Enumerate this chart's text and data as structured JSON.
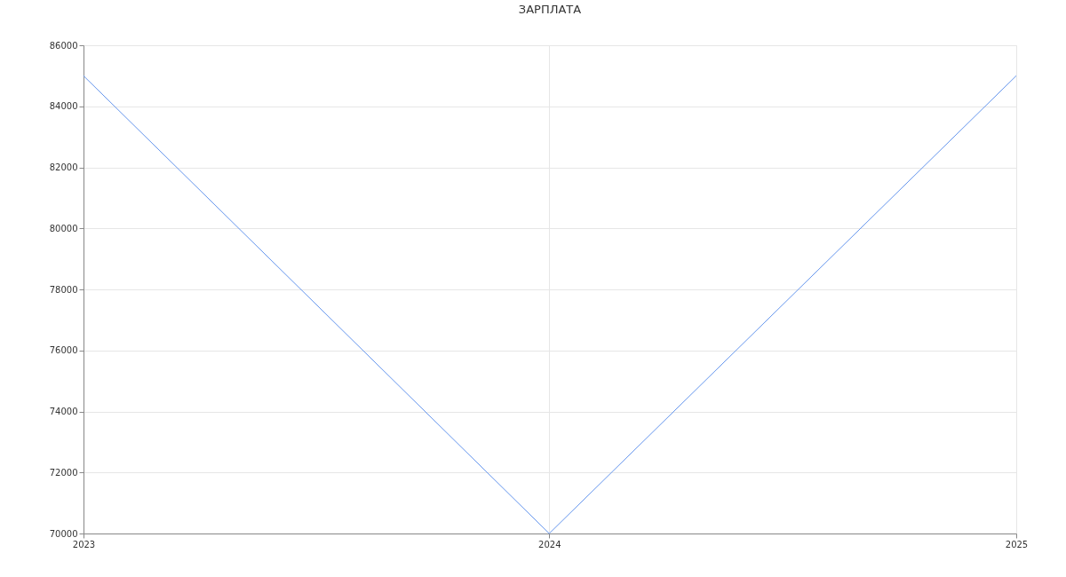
{
  "chart_data": {
    "type": "line",
    "title": "ЗАРПЛАТА",
    "x": [
      "2023",
      "2024",
      "2025"
    ],
    "series": [
      {
        "color": "#6495ed",
        "values": [
          85000,
          70000,
          85000
        ]
      }
    ],
    "xlim": [
      "2023",
      "2025"
    ],
    "xticks": [
      "2023",
      "2024",
      "2025"
    ],
    "ylim": [
      70000,
      86000
    ],
    "yticks": [
      70000,
      72000,
      74000,
      76000,
      78000,
      80000,
      82000,
      84000,
      86000
    ],
    "grid": true,
    "legend": false,
    "marker": "none",
    "line_style": "solid"
  }
}
